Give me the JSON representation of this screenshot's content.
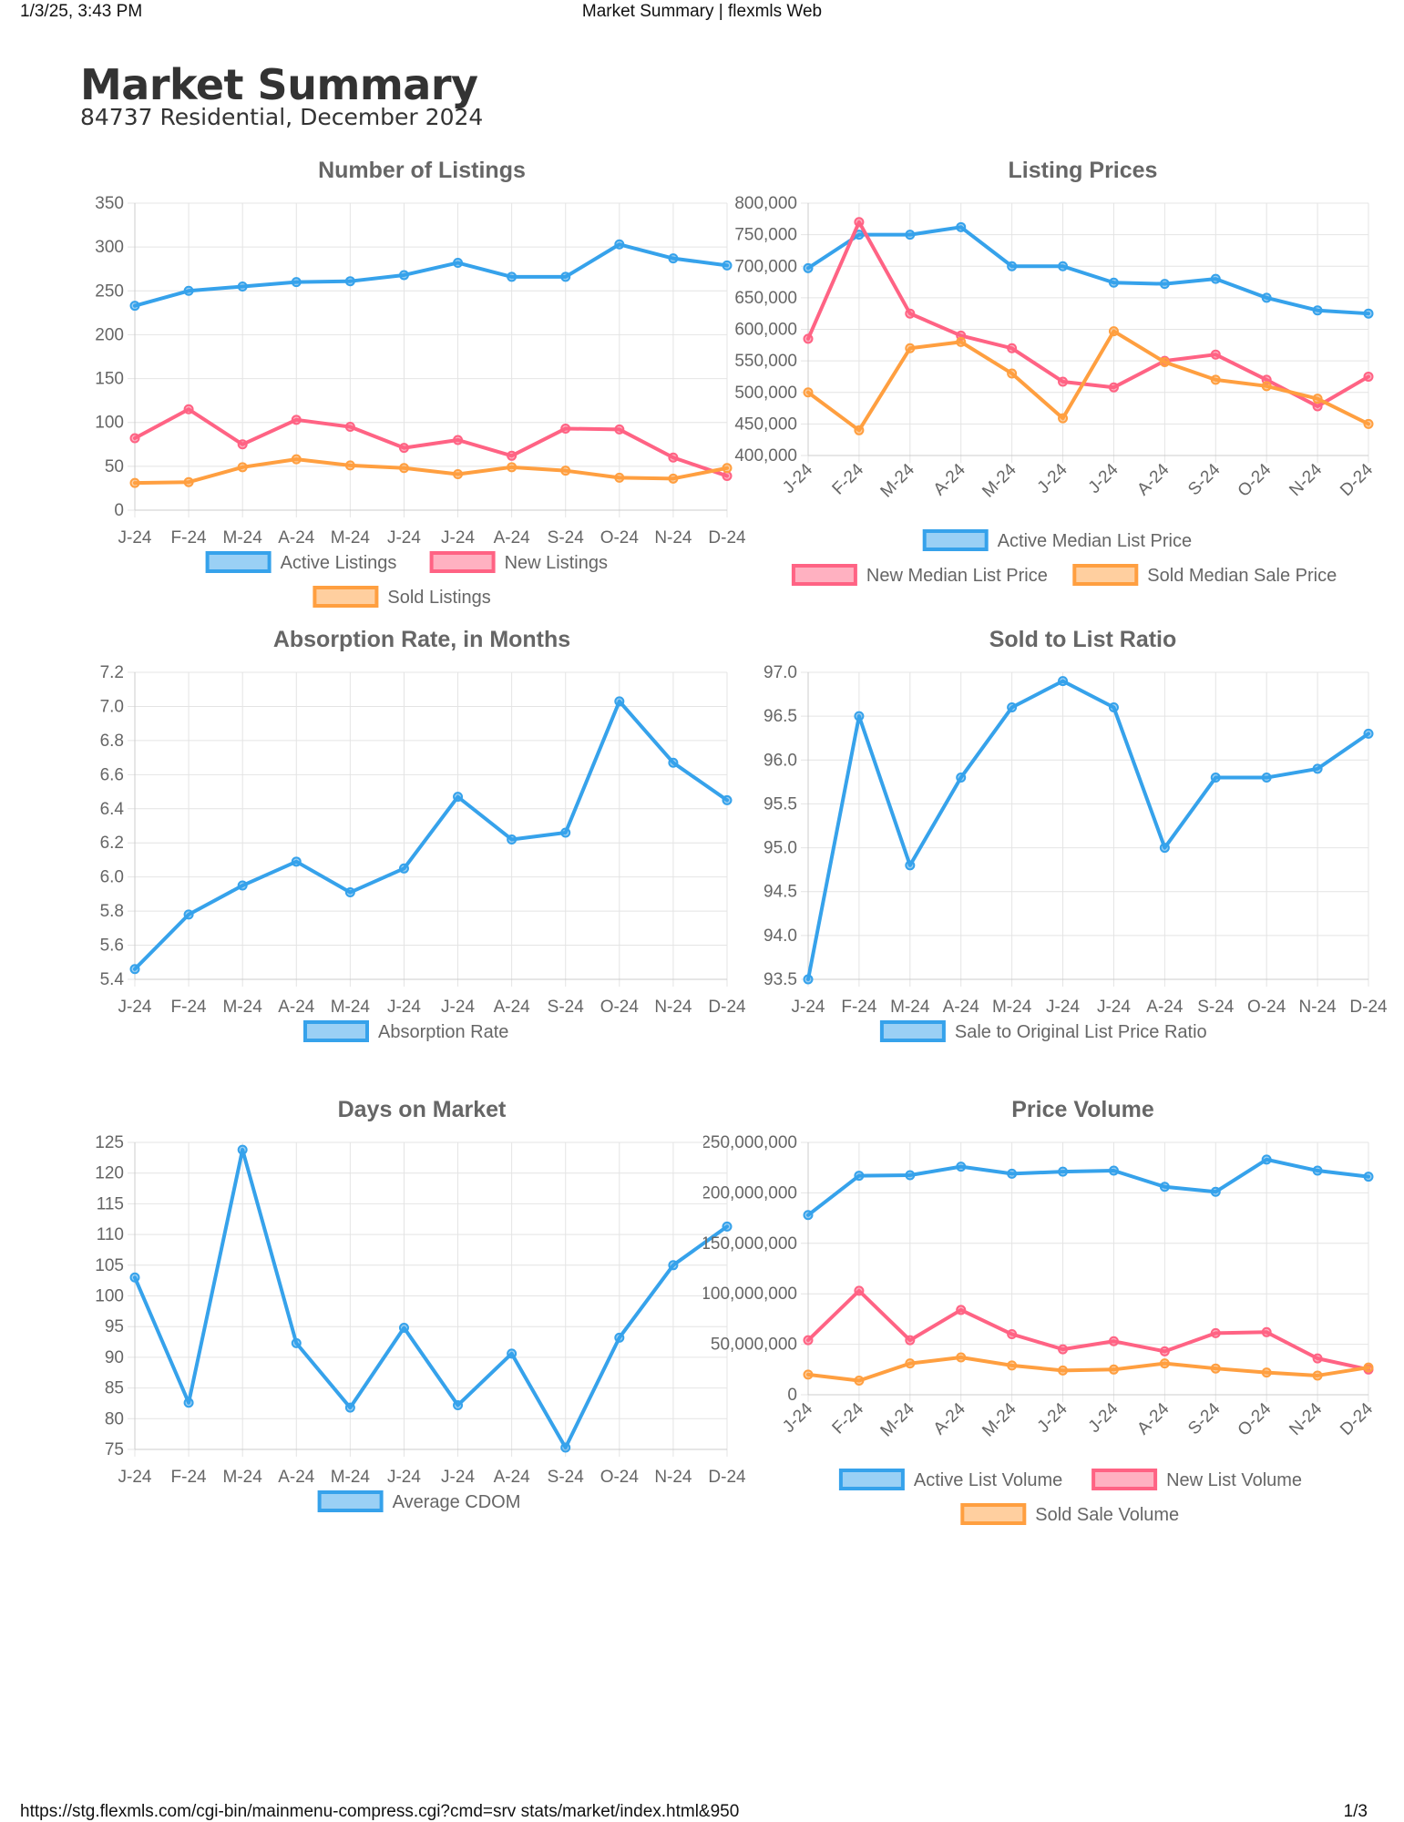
{
  "browser": {
    "timestamp": "1/3/25, 3:43 PM",
    "page_title": "Market Summary | flexmls Web",
    "url": "https://stg.flexmls.com/cgi-bin/mainmenu-compress.cgi?cmd=srv stats/market/index.html&950",
    "page_number": "1/3"
  },
  "report": {
    "title": "Market Summary",
    "subtitle": "84737 Residential, December 2024"
  },
  "colors": {
    "blue": "#36a2eb",
    "pink": "#ff6384",
    "orange": "#ff9f40"
  },
  "chart_data": [
    {
      "id": "listings",
      "type": "line",
      "title": "Number of Listings",
      "categories": [
        "J-24",
        "F-24",
        "M-24",
        "A-24",
        "M-24",
        "J-24",
        "J-24",
        "A-24",
        "S-24",
        "O-24",
        "N-24",
        "D-24"
      ],
      "ylim": [
        0,
        350
      ],
      "yticks": [
        0,
        50,
        100,
        150,
        200,
        250,
        300,
        350
      ],
      "ytick_labels": [
        "0",
        "50",
        "100",
        "150",
        "200",
        "250",
        "300",
        "350"
      ],
      "rotated_x": false,
      "grid": true,
      "legend_position": "bottom",
      "series": [
        {
          "name": "Active Listings",
          "color": "#36a2eb",
          "values": [
            233,
            250,
            255,
            260,
            261,
            268,
            282,
            266,
            266,
            303,
            287,
            279
          ]
        },
        {
          "name": "New Listings",
          "color": "#ff6384",
          "values": [
            82,
            115,
            75,
            103,
            95,
            71,
            80,
            62,
            93,
            92,
            60,
            39
          ]
        },
        {
          "name": "Sold Listings",
          "color": "#ff9f40",
          "values": [
            31,
            32,
            49,
            58,
            51,
            48,
            41,
            49,
            45,
            37,
            36,
            48
          ]
        }
      ]
    },
    {
      "id": "prices",
      "type": "line",
      "title": "Listing Prices",
      "categories": [
        "J-24",
        "F-24",
        "M-24",
        "A-24",
        "M-24",
        "J-24",
        "J-24",
        "A-24",
        "S-24",
        "O-24",
        "N-24",
        "D-24"
      ],
      "ylim": [
        400000,
        800000
      ],
      "yticks": [
        400000,
        450000,
        500000,
        550000,
        600000,
        650000,
        700000,
        750000,
        800000
      ],
      "ytick_labels": [
        "400,000",
        "450,000",
        "500,000",
        "550,000",
        "600,000",
        "650,000",
        "700,000",
        "750,000",
        "800,000"
      ],
      "rotated_x": true,
      "grid": true,
      "legend_position": "bottom",
      "series": [
        {
          "name": "Active Median List Price",
          "color": "#36a2eb",
          "values": [
            697000,
            750000,
            750000,
            762000,
            700000,
            700000,
            674000,
            672000,
            680000,
            650000,
            630000,
            625000
          ]
        },
        {
          "name": "New Median List Price",
          "color": "#ff6384",
          "values": [
            585000,
            770000,
            625000,
            590000,
            570000,
            517000,
            508000,
            550000,
            560000,
            520000,
            478000,
            525000
          ]
        },
        {
          "name": "Sold Median Sale Price",
          "color": "#ff9f40",
          "values": [
            500000,
            440000,
            570000,
            580000,
            530000,
            459000,
            597000,
            548000,
            520000,
            510000,
            490000,
            450000
          ]
        }
      ]
    },
    {
      "id": "absorption",
      "type": "line",
      "title": "Absorption Rate, in Months",
      "categories": [
        "J-24",
        "F-24",
        "M-24",
        "A-24",
        "M-24",
        "J-24",
        "J-24",
        "A-24",
        "S-24",
        "O-24",
        "N-24",
        "D-24"
      ],
      "ylim": [
        5.4,
        7.2
      ],
      "yticks": [
        5.4,
        5.6,
        5.8,
        6.0,
        6.2,
        6.4,
        6.6,
        6.8,
        7.0,
        7.2
      ],
      "ytick_labels": [
        "5.4",
        "5.6",
        "5.8",
        "6.0",
        "6.2",
        "6.4",
        "6.6",
        "6.8",
        "7.0",
        "7.2"
      ],
      "rotated_x": false,
      "grid": true,
      "legend_position": "bottom",
      "series": [
        {
          "name": "Absorption Rate",
          "color": "#36a2eb",
          "values": [
            5.46,
            5.78,
            5.95,
            6.09,
            5.91,
            6.05,
            6.47,
            6.22,
            6.26,
            7.03,
            6.67,
            6.45
          ]
        }
      ]
    },
    {
      "id": "ratio",
      "type": "line",
      "title": "Sold to List Ratio",
      "categories": [
        "J-24",
        "F-24",
        "M-24",
        "A-24",
        "M-24",
        "J-24",
        "J-24",
        "A-24",
        "S-24",
        "O-24",
        "N-24",
        "D-24"
      ],
      "ylim": [
        93.5,
        97.0
      ],
      "yticks": [
        93.5,
        94.0,
        94.5,
        95.0,
        95.5,
        96.0,
        96.5,
        97.0
      ],
      "ytick_labels": [
        "93.5",
        "94.0",
        "94.5",
        "95.0",
        "95.5",
        "96.0",
        "96.5",
        "97.0"
      ],
      "rotated_x": false,
      "grid": true,
      "legend_position": "bottom",
      "series": [
        {
          "name": "Sale to Original List Price Ratio",
          "color": "#36a2eb",
          "values": [
            93.5,
            96.5,
            94.8,
            95.8,
            96.6,
            96.9,
            96.6,
            95.0,
            95.8,
            95.8,
            95.9,
            96.3
          ]
        }
      ]
    },
    {
      "id": "dom",
      "type": "line",
      "title": "Days on Market",
      "categories": [
        "J-24",
        "F-24",
        "M-24",
        "A-24",
        "M-24",
        "J-24",
        "J-24",
        "A-24",
        "S-24",
        "O-24",
        "N-24",
        "D-24"
      ],
      "ylim": [
        75,
        125
      ],
      "yticks": [
        75,
        80,
        85,
        90,
        95,
        100,
        105,
        110,
        115,
        120,
        125
      ],
      "ytick_labels": [
        "75",
        "80",
        "85",
        "90",
        "95",
        "100",
        "105",
        "110",
        "115",
        "120",
        "125"
      ],
      "rotated_x": false,
      "grid": true,
      "legend_position": "bottom",
      "series": [
        {
          "name": "Average CDOM",
          "color": "#36a2eb",
          "values": [
            103,
            82.6,
            123.8,
            92.3,
            81.8,
            94.8,
            82.2,
            90.6,
            75.3,
            93.2,
            105,
            111.3
          ]
        }
      ]
    },
    {
      "id": "volume",
      "type": "line",
      "title": "Price Volume",
      "categories": [
        "J-24",
        "F-24",
        "M-24",
        "A-24",
        "M-24",
        "J-24",
        "J-24",
        "A-24",
        "S-24",
        "O-24",
        "N-24",
        "D-24"
      ],
      "ylim": [
        0,
        250000000
      ],
      "yticks": [
        0,
        50000000,
        100000000,
        150000000,
        200000000,
        250000000
      ],
      "ytick_labels": [
        "0",
        "50,000,000",
        "100,000,000",
        "150,000,000",
        "200,000,000",
        "250,000,000"
      ],
      "rotated_x": true,
      "grid": true,
      "legend_position": "bottom",
      "series": [
        {
          "name": "Active List Volume",
          "color": "#36a2eb",
          "values": [
            178000000,
            217000000,
            217500000,
            226000000,
            219000000,
            221000000,
            222000000,
            206000000,
            201000000,
            233000000,
            222000000,
            216000000
          ]
        },
        {
          "name": "New List Volume",
          "color": "#ff6384",
          "values": [
            54000000,
            103000000,
            54000000,
            84000000,
            60000000,
            45000000,
            53000000,
            43000000,
            61000000,
            62000000,
            36000000,
            25000000
          ]
        },
        {
          "name": "Sold Sale Volume",
          "color": "#ff9f40",
          "values": [
            20000000,
            14000000,
            31000000,
            37000000,
            29000000,
            24000000,
            25000000,
            31000000,
            26000000,
            22000000,
            19000000,
            27000000
          ]
        }
      ]
    }
  ]
}
